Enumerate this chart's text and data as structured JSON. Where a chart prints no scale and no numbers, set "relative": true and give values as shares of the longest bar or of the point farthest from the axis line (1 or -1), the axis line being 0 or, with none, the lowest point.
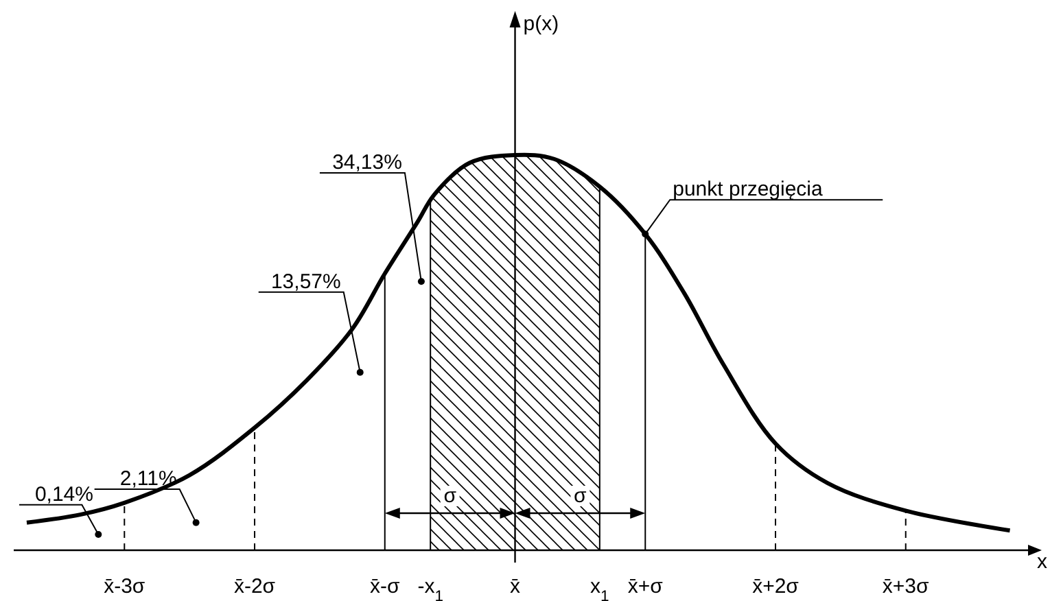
{
  "chart_data": {
    "type": "line",
    "relative": true,
    "xlabel": "x",
    "xlim": [
      -3.85,
      3.95
    ],
    "xticks": [
      {
        "value": -3,
        "label": "x̄-3σ"
      },
      {
        "value": -2,
        "label": "x̄-2σ"
      },
      {
        "value": -1,
        "label": "x̄-σ"
      },
      {
        "value": -0.65,
        "label": "-x$_{1}$"
      },
      {
        "value": 0,
        "label": "x̄"
      },
      {
        "value": 0.65,
        "label": "x$_{1}$"
      },
      {
        "value": 1,
        "label": "x̄+σ"
      },
      {
        "value": 2,
        "label": "x̄+2σ"
      },
      {
        "value": 3,
        "label": "x̄+3σ"
      }
    ],
    "x": [
      -3.75,
      -3.34,
      -3.0,
      -2.5,
      -2.0,
      -1.6,
      -1.25,
      -1.0,
      -0.75,
      -0.62,
      -0.35,
      0,
      0.3,
      0.65,
      1.0,
      1.3,
      1.6,
      2.0,
      2.4,
      3.0,
      3.8
    ],
    "series": [
      {
        "color": "#000000",
        "values": [
          0.07,
          0.09,
          0.12,
          0.19,
          0.31,
          0.43,
          0.56,
          0.7,
          0.83,
          0.9,
          0.98,
          1.0,
          0.99,
          0.92,
          0.8,
          0.65,
          0.47,
          0.27,
          0.17,
          0.1,
          0.05
        ]
      }
    ],
    "marker": "none",
    "line_style": "solid",
    "bands": [
      {
        "axis": "x",
        "from": -0.65,
        "to": 0.65,
        "color": "#000000"
      }
    ],
    "ref_lines": [
      {
        "axis": "x",
        "value": -1,
        "line_style": "solid"
      },
      {
        "axis": "x",
        "value": 1,
        "line_style": "solid"
      },
      {
        "axis": "x",
        "value": -2,
        "line_style": "dashed"
      },
      {
        "axis": "x",
        "value": 2,
        "line_style": "dashed"
      },
      {
        "axis": "x",
        "value": -3,
        "line_style": "dashed"
      },
      {
        "axis": "x",
        "value": 3,
        "line_style": "dashed"
      }
    ],
    "annotations": [
      {
        "text": "34,13%",
        "x": -0.72,
        "y": 0.68
      },
      {
        "text": "13,57%",
        "x": -1.19,
        "y": 0.45
      },
      {
        "text": "2,11%",
        "x": -2.45,
        "y": 0.07
      },
      {
        "text": "0,14%",
        "x": -3.2,
        "y": 0.04
      },
      {
        "text": "punkt przegięcia",
        "x": 1.0,
        "y": 0.8
      },
      "σ",
      "σ",
      "p(x)"
    ]
  }
}
